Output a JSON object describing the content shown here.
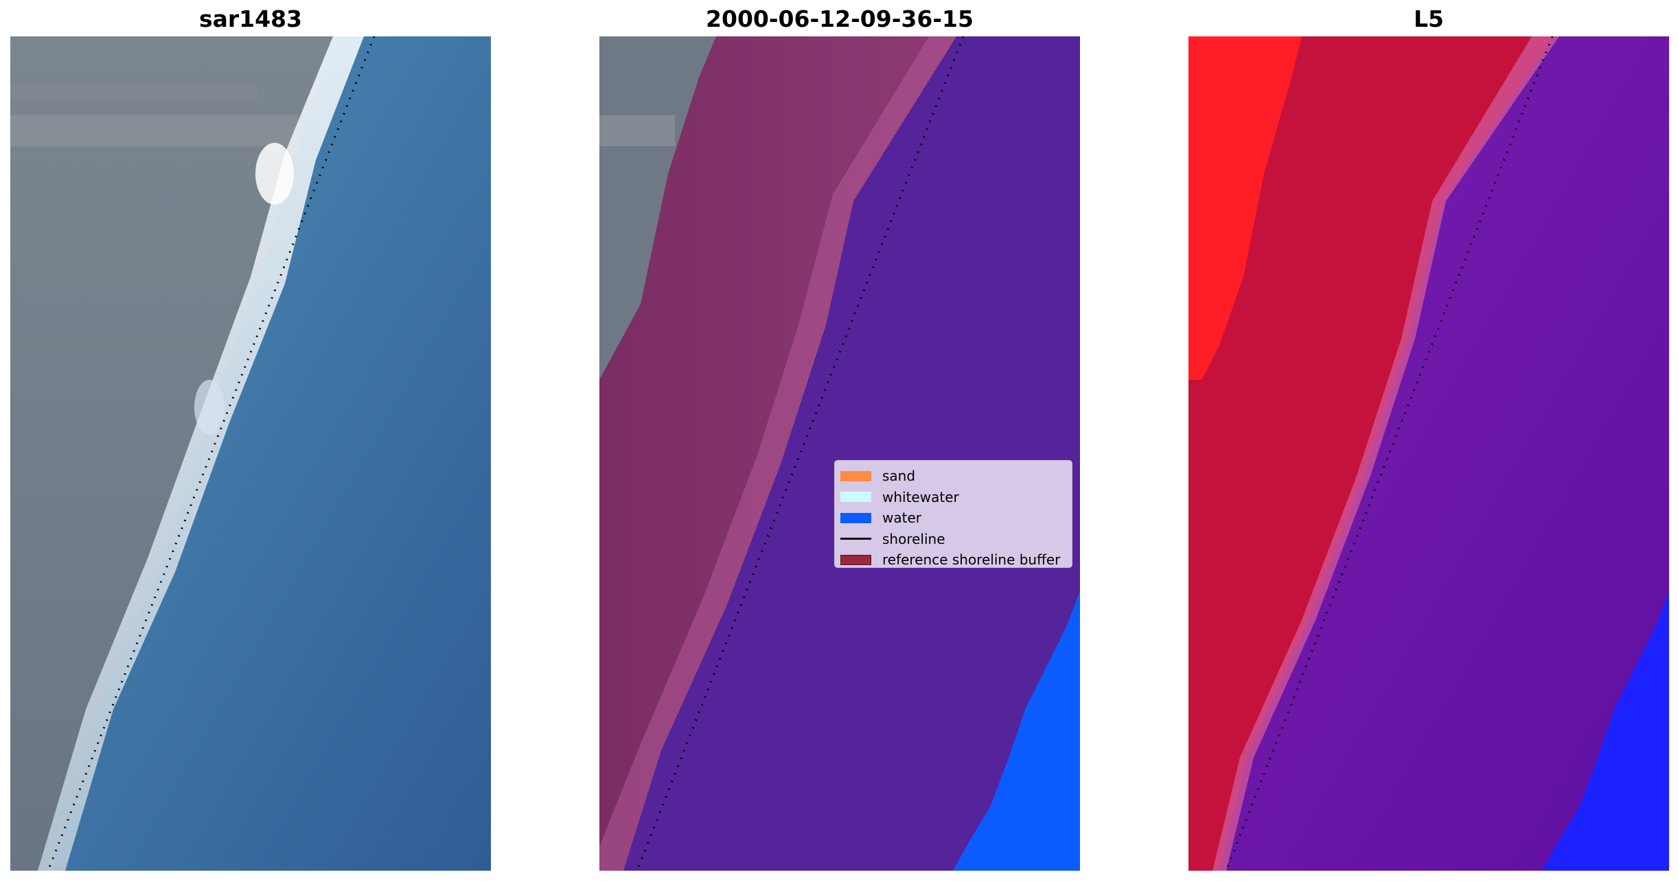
{
  "panels": [
    {
      "title": "sar1483"
    },
    {
      "title": "2000-06-12-09-36-15"
    },
    {
      "title": "L5"
    }
  ],
  "legend": {
    "items": [
      {
        "label": "sand",
        "color": "#ff8c42",
        "kind": "patch"
      },
      {
        "label": "whitewater",
        "color": "#cdfaff",
        "kind": "patch"
      },
      {
        "label": "water",
        "color": "#0a5cff",
        "kind": "patch"
      },
      {
        "label": "shoreline",
        "color": "#000000",
        "kind": "line"
      },
      {
        "label": "reference shoreline buffer",
        "color": "#9b2a3a",
        "kind": "patch"
      }
    ]
  },
  "colors": {
    "land_gray": "#6b7784",
    "ocean_blue": "#3d7fae",
    "buffer_magenta": "#7f2f63",
    "classified_water_purple": "#55239a",
    "water_class_blue": "#0a5cff",
    "index_red": "#ff1e26",
    "index_crimson": "#c4123c",
    "index_purple": "#6a12a6",
    "index_blue": "#1b22ff"
  }
}
